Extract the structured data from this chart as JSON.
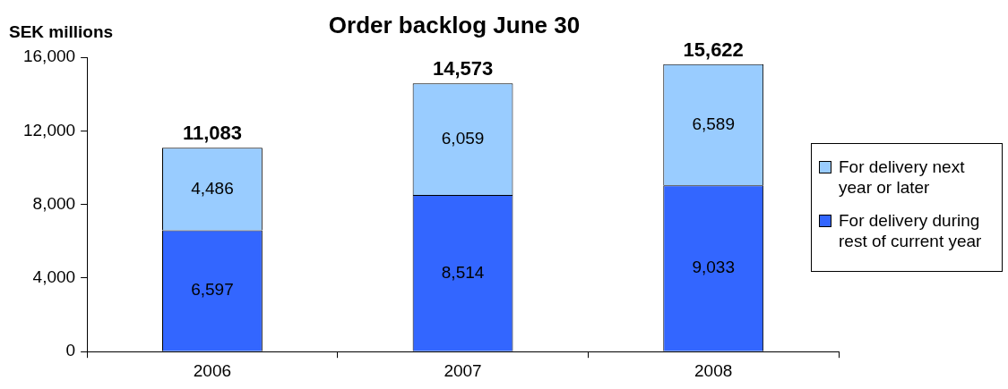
{
  "chart_data": {
    "type": "bar",
    "title": "Order backlog June 30",
    "ylabel": "SEK millions",
    "categories": [
      "2006",
      "2007",
      "2008"
    ],
    "stacked": true,
    "series": [
      {
        "name": "For delivery during rest of current year",
        "color": "#3366ff",
        "values": [
          6597,
          8514,
          9033
        ]
      },
      {
        "name": "For delivery next year or later",
        "color": "#99ccff",
        "values": [
          4486,
          6059,
          6589
        ]
      }
    ],
    "ylim": [
      0,
      16000
    ],
    "yticks": [
      {
        "value": 0,
        "label": "0"
      },
      {
        "value": 4000,
        "label": "4,000"
      },
      {
        "value": 8000,
        "label": "8,000"
      },
      {
        "value": 12000,
        "label": "12,000"
      },
      {
        "value": 16000,
        "label": "16,000"
      }
    ],
    "value_labels": [
      [
        "6,597",
        "8,514",
        "9,033"
      ],
      [
        "4,486",
        "6,059",
        "6,589"
      ]
    ],
    "totals": [
      "11,083",
      "14,573",
      "15,622"
    ],
    "grid": false,
    "legend": "right"
  }
}
